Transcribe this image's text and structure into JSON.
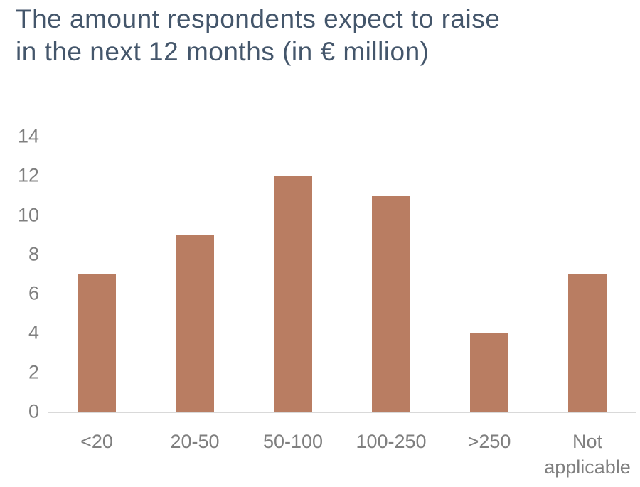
{
  "chart_data": {
    "type": "bar",
    "title": "The amount respondents expect to raise in the next 12 months (in € million)",
    "title_lines": [
      "The amount respondents expect to raise",
      "in the next 12 months (in € million)"
    ],
    "categories": [
      "<20",
      "20-50",
      "50-100",
      "100-250",
      ">250",
      "Not applicable"
    ],
    "values": [
      7,
      9,
      12,
      11,
      4,
      7
    ],
    "yticks": [
      0,
      2,
      4,
      6,
      8,
      10,
      12,
      14
    ],
    "ylim": [
      0,
      14
    ],
    "xlabel": "",
    "ylabel": "",
    "grid": false,
    "legend_position": "none",
    "colors": {
      "bar": "#b97d62",
      "title": "#44566b",
      "axis_labels": "#7f7f7f",
      "axis_line": "#d9d9d9"
    }
  }
}
